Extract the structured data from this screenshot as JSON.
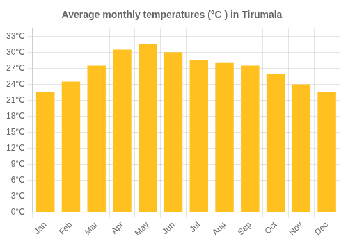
{
  "chart_data": {
    "type": "bar",
    "title": "Average monthly temperatures (°C ) in Tirumala",
    "categories": [
      "Jan",
      "Feb",
      "Mar",
      "Apr",
      "May",
      "Jun",
      "Jul",
      "Aug",
      "Sep",
      "Oct",
      "Nov",
      "Dec"
    ],
    "values": [
      22.5,
      24.5,
      27.5,
      30.5,
      31.5,
      30.0,
      28.5,
      28.0,
      27.5,
      26.0,
      24.0,
      22.5
    ],
    "color": "#FFC020",
    "ylim": [
      0,
      34.5
    ],
    "yticks": [
      {
        "value": 0,
        "label": "0°C"
      },
      {
        "value": 3,
        "label": "3°C"
      },
      {
        "value": 6,
        "label": "6°C"
      },
      {
        "value": 9,
        "label": "9°C"
      },
      {
        "value": 12,
        "label": "12°C"
      },
      {
        "value": 15,
        "label": "15°C"
      },
      {
        "value": 18,
        "label": "18°C"
      },
      {
        "value": 21,
        "label": "21°C"
      },
      {
        "value": 24,
        "label": "24°C"
      },
      {
        "value": 27,
        "label": "27°C"
      },
      {
        "value": 30,
        "label": "30°C"
      },
      {
        "value": 33,
        "label": "33°C"
      }
    ],
    "grid": true
  }
}
